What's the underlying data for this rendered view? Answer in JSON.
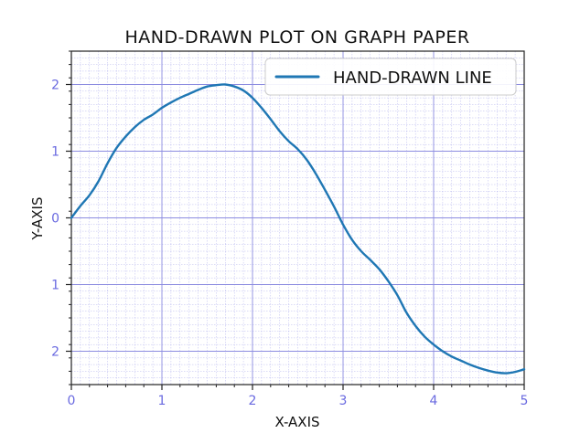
{
  "chart_data": {
    "type": "line",
    "title": "HAND-DRAWN PLOT ON GRAPH PAPER",
    "xlabel": "X-AXIS",
    "ylabel": "Y-AXIS",
    "xlim": [
      0,
      5
    ],
    "ylim": [
      -2.5,
      2.5
    ],
    "x_ticks": [
      0,
      1,
      2,
      3,
      4,
      5
    ],
    "x_tick_labels": [
      "0",
      "1",
      "2",
      "3",
      "4",
      "5"
    ],
    "y_ticks": [
      -2,
      -1,
      0,
      1,
      2
    ],
    "y_tick_labels": [
      "2",
      "1",
      "0",
      "1",
      "2"
    ],
    "grid": true,
    "legend_position": "top-right",
    "series": [
      {
        "name": "HAND-DRAWN LINE",
        "color": "#1f77b4",
        "x": [
          0,
          0.1,
          0.2,
          0.3,
          0.4,
          0.5,
          0.6,
          0.7,
          0.8,
          0.9,
          1.0,
          1.1,
          1.2,
          1.3,
          1.4,
          1.5,
          1.6,
          1.7,
          1.8,
          1.9,
          2.0,
          2.1,
          2.2,
          2.3,
          2.4,
          2.5,
          2.6,
          2.7,
          2.8,
          2.9,
          3.0,
          3.1,
          3.2,
          3.3,
          3.4,
          3.5,
          3.6,
          3.7,
          3.8,
          3.9,
          4.0,
          4.1,
          4.2,
          4.3,
          4.4,
          4.5,
          4.6,
          4.7,
          4.8,
          4.9,
          5.0
        ],
        "y": [
          0,
          0.18,
          0.34,
          0.55,
          0.82,
          1.05,
          1.22,
          1.36,
          1.47,
          1.55,
          1.65,
          1.73,
          1.8,
          1.86,
          1.92,
          1.97,
          1.99,
          2.0,
          1.97,
          1.91,
          1.8,
          1.65,
          1.48,
          1.3,
          1.15,
          1.03,
          0.87,
          0.66,
          0.42,
          0.17,
          -0.1,
          -0.33,
          -0.5,
          -0.63,
          -0.77,
          -0.95,
          -1.16,
          -1.42,
          -1.62,
          -1.78,
          -1.9,
          -2.0,
          -2.08,
          -2.14,
          -2.2,
          -2.25,
          -2.29,
          -2.32,
          -2.33,
          -2.31,
          -2.27
        ]
      }
    ]
  }
}
